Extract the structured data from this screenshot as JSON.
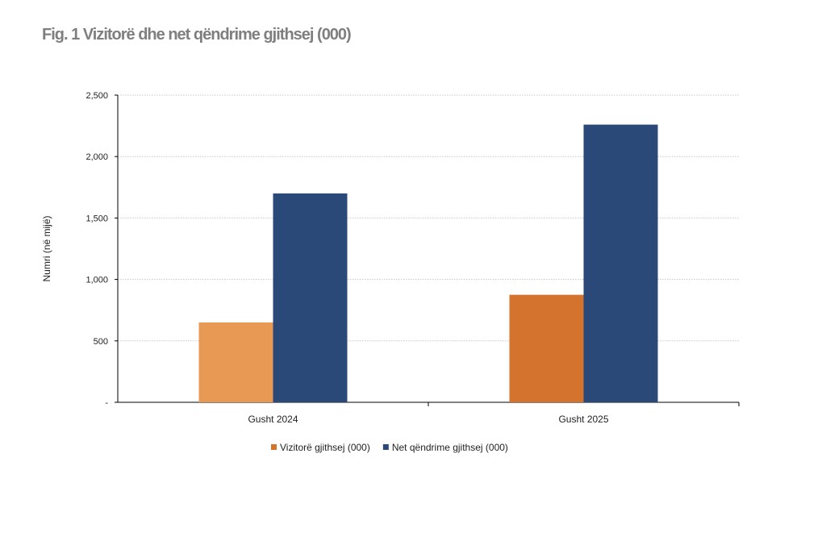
{
  "chart_data": {
    "type": "bar",
    "title": "Fig. 1 Vizitorë dhe net qëndrime gjithsej (000)",
    "ylabel": "Numri (në mijë)",
    "xlabel": "",
    "categories": [
      "Gusht 2024",
      "Gusht 2025"
    ],
    "series": [
      {
        "name": "Vizitorë gjithsej (000)",
        "values": [
          650,
          875
        ],
        "color": "#D4732E",
        "point_colors": [
          "#E89A55",
          "#D4732E"
        ]
      },
      {
        "name": "Net qëndrime gjithsej (000)",
        "values": [
          1700,
          2260
        ],
        "color": "#2A4878"
      }
    ],
    "ylim": [
      0,
      2500
    ],
    "yticks": [
      0,
      500,
      1000,
      1500,
      2000,
      2500
    ],
    "ytick_labels": [
      "-",
      "500",
      "1,000",
      "1,500",
      "2,000",
      "2,500"
    ],
    "grid": true,
    "legend": "bottom"
  }
}
